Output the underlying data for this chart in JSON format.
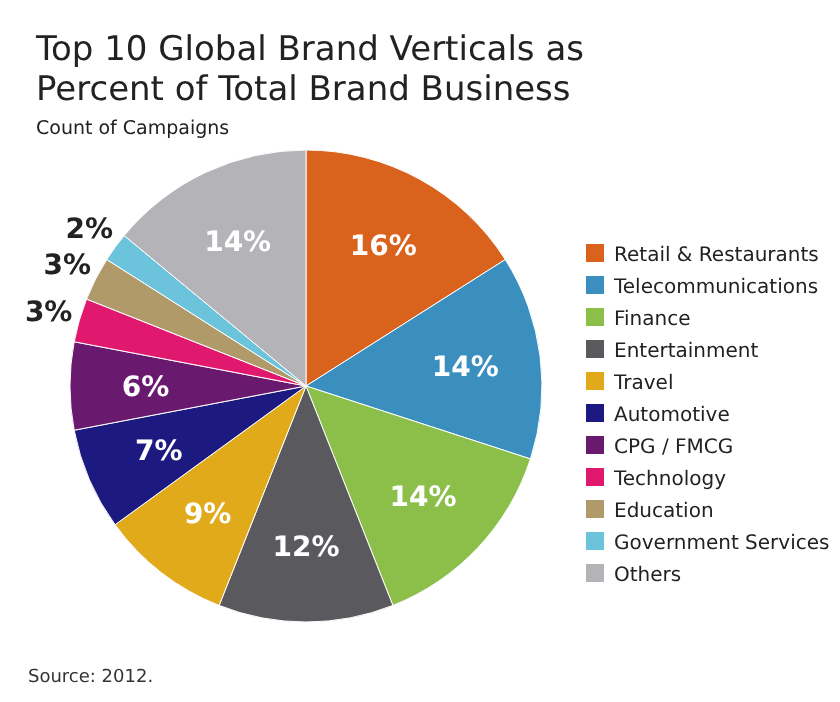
{
  "chart_data": {
    "type": "pie",
    "title": "Top 10 Global Brand Verticals as Percent of Total Brand Business",
    "subtitle": "Count of Campaigns",
    "categories": [
      "Retail & Restaurants",
      "Telecommunications",
      "Finance",
      "Entertainment",
      "Travel",
      "Automotive",
      "CPG / FMCG",
      "Technology",
      "Education",
      "Government Services",
      "Others"
    ],
    "values": [
      16,
      14,
      14,
      12,
      9,
      7,
      6,
      3,
      3,
      2,
      14
    ],
    "colors": [
      "#d9621c",
      "#3a8fbf",
      "#8cbf4a",
      "#5a5a5e",
      "#e0aa1a",
      "#1c1a80",
      "#6a1a6e",
      "#e0186e",
      "#b09a6a",
      "#6cc4dc",
      "#b4b4b8"
    ],
    "value_labels": [
      "16%",
      "14%",
      "14%",
      "12%",
      "9%",
      "7%",
      "6%",
      "3%",
      "3%",
      "2%",
      "14%"
    ],
    "legend": "right",
    "annotations": [
      "Source: 2012."
    ]
  }
}
